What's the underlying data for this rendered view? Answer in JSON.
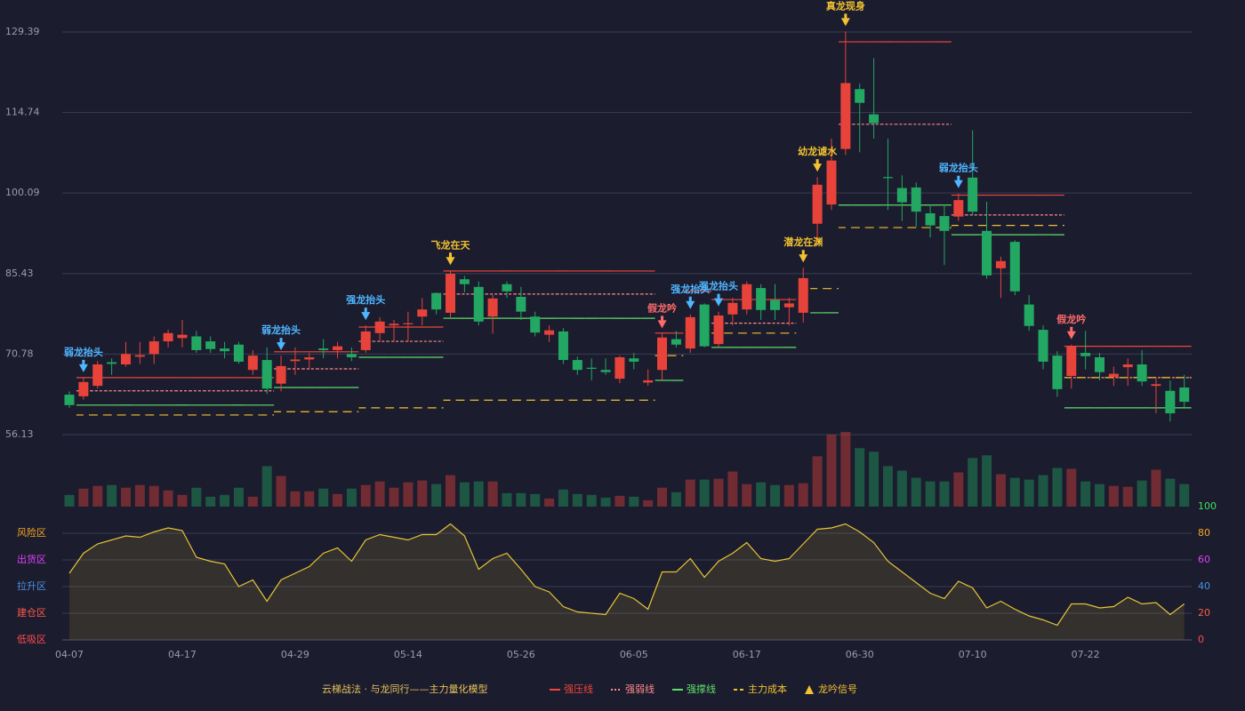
{
  "chart_data": {
    "type": "candlestick",
    "subtitle": "云梯战法 · 与龙同行——主力量化模型",
    "categories": [
      "04-07",
      null,
      null,
      null,
      null,
      null,
      null,
      null,
      "04-17",
      null,
      null,
      null,
      null,
      null,
      null,
      null,
      "04-29",
      null,
      null,
      null,
      null,
      null,
      null,
      null,
      "05-14",
      null,
      null,
      null,
      null,
      null,
      null,
      null,
      "05-26",
      null,
      null,
      null,
      null,
      null,
      null,
      null,
      "06-05",
      null,
      null,
      null,
      null,
      null,
      null,
      null,
      "06-17",
      null,
      null,
      null,
      null,
      null,
      null,
      null,
      "06-30",
      null,
      null,
      null,
      null,
      null,
      null,
      null,
      "07-10",
      null,
      null,
      null,
      null,
      null,
      null,
      null,
      "07-22",
      null,
      null,
      null,
      null,
      null,
      null,
      null
    ],
    "open": [
      63.4,
      63.1,
      65,
      69.3,
      68.9,
      70.3,
      70.8,
      73.1,
      73.7,
      74.0,
      73.1,
      71.8,
      72.5,
      67.9,
      69.7,
      65.4,
      69.5,
      69.8,
      71.8,
      71.5,
      70.8,
      71.5,
      74.6,
      76,
      76.2,
      77.6,
      81.9,
      78.3,
      84.4,
      83.0,
      77.6,
      83.5,
      81.2,
      77.6,
      74.3,
      74.9,
      69.7,
      68.3,
      67.9,
      66.3,
      70,
      65.6,
      67.9,
      73.5,
      71.8,
      79.8,
      72.6,
      78.0,
      78.9,
      82.8,
      80.6,
      79.3,
      78.3,
      94.5,
      98.0,
      108.1,
      119,
      114.4,
      103,
      101,
      101.1,
      96.4,
      95.9,
      95.8,
      102.9,
      93.2,
      86.4,
      91.2,
      79.8,
      75.2,
      70.5,
      66.8,
      71.0,
      70.2,
      66.6,
      68.4,
      68.9,
      65,
      64.1,
      64.7
    ],
    "high": [
      64,
      66.5,
      69.5,
      70,
      73,
      73,
      74,
      75.2,
      77,
      75,
      74,
      73,
      73,
      71.5,
      72,
      70.5,
      72,
      71,
      73.5,
      73,
      72,
      76,
      77.5,
      77,
      78.5,
      81,
      82,
      86,
      85,
      84,
      81.5,
      84,
      83,
      78.5,
      76,
      75.5,
      70.3,
      70,
      70,
      70.5,
      71,
      68,
      74.5,
      75,
      78,
      80,
      78.5,
      81,
      84,
      83.5,
      83.5,
      81,
      86.5,
      103,
      110,
      129.5,
      120,
      124.6,
      110,
      103.3,
      102,
      98,
      98,
      100,
      111.5,
      98.5,
      88.5,
      91.5,
      81.5,
      76,
      71.3,
      72.5,
      75,
      71,
      68.5,
      70,
      71.5,
      66.5,
      66,
      67
    ],
    "low": [
      61,
      62.5,
      64.5,
      67,
      68.5,
      69,
      69,
      72,
      72,
      71,
      71,
      70,
      69,
      67,
      63.5,
      64,
      67,
      68,
      70,
      70,
      69.5,
      71,
      73,
      73,
      73,
      76,
      78,
      77.5,
      82,
      76,
      74.5,
      81,
      77,
      74,
      73,
      69,
      67,
      66,
      67,
      65.5,
      68,
      65,
      66,
      72,
      71,
      72,
      72,
      76,
      78,
      77,
      77,
      76,
      76.5,
      91.5,
      97,
      107,
      107.5,
      110,
      97,
      95,
      94,
      92,
      87,
      95,
      96,
      84.5,
      81,
      81.5,
      75,
      68,
      63,
      64.5,
      68,
      66,
      65,
      65,
      65,
      60,
      58.5,
      61
    ],
    "close": [
      61.5,
      65.7,
      68.9,
      69.0,
      70.8,
      70.6,
      73.1,
      74.6,
      74.3,
      71.5,
      71.7,
      71.3,
      69.4,
      70.5,
      64.5,
      68.6,
      69.8,
      70.2,
      71.5,
      72.2,
      70.2,
      74.9,
      76.7,
      76.3,
      76.4,
      78.9,
      78.9,
      85.4,
      83.5,
      76.7,
      80.9,
      82.2,
      78.5,
      74.7,
      75.1,
      69.7,
      67.9,
      68.1,
      67.5,
      70.2,
      69.4,
      66.0,
      73.8,
      72.5,
      77.5,
      72.2,
      77.8,
      80.1,
      83.5,
      78.8,
      78.8,
      80.0,
      84.6,
      101.6,
      106.0,
      120.1,
      116.5,
      112.8,
      102.8,
      98.4,
      96.7,
      94.2,
      93.2,
      98.8,
      96.7,
      85.1,
      87.7,
      82.2,
      75.9,
      69.4,
      64.4,
      72.2,
      70.4,
      67.5,
      67.2,
      68.9,
      65.8,
      65.3,
      60.0,
      62.1
    ],
    "up_color": "#e8433a",
    "down_color": "#22a862",
    "ylim": [
      56.13,
      129.39
    ],
    "yticks": [
      56.13,
      70.78,
      85.43,
      100.09,
      114.74,
      129.39
    ],
    "volume": [
      13,
      20,
      23,
      24,
      21,
      24,
      23,
      18,
      13,
      21,
      11,
      13,
      21,
      11,
      45,
      34,
      17,
      17,
      20,
      14,
      20,
      24,
      28,
      21,
      27,
      29,
      25,
      35,
      27,
      28,
      28,
      15,
      15,
      14,
      9,
      19,
      14,
      13,
      10,
      12,
      11,
      7,
      21,
      16,
      30,
      30,
      31,
      39,
      25,
      27,
      24,
      24,
      26,
      56,
      80,
      83,
      65,
      61,
      45,
      40,
      32,
      28,
      28,
      38,
      54,
      57,
      36,
      32,
      30,
      35,
      43,
      42,
      28,
      25,
      23,
      22,
      29,
      41,
      31,
      25
    ],
    "series": [
      {
        "name": "强压线",
        "color": "#f0463c",
        "style": "solid",
        "values": [
          null,
          66.5,
          66.5,
          66.5,
          66.5,
          66.5,
          66.5,
          66.5,
          66.5,
          66.5,
          66.5,
          66.5,
          66.5,
          66.5,
          66.5,
          71.2,
          71.2,
          71.2,
          71.2,
          71.2,
          71.2,
          75.7,
          75.7,
          75.7,
          75.7,
          75.7,
          75.7,
          85.9,
          85.9,
          85.9,
          85.9,
          85.9,
          85.9,
          85.9,
          85.9,
          85.9,
          85.9,
          85.9,
          85.9,
          85.9,
          85.9,
          85.9,
          74.6,
          74.6,
          82.2,
          82.2,
          80.7,
          80.7,
          80.7,
          80.7,
          80.7,
          80.7,
          null,
          null,
          null,
          127.6,
          127.6,
          127.6,
          127.6,
          127.6,
          127.6,
          127.6,
          127.6,
          99.7,
          99.7,
          99.7,
          99.7,
          99.7,
          99.7,
          99.7,
          99.7,
          72.2,
          72.2,
          72.2,
          72.2,
          72.2,
          72.2,
          72.2,
          72.2,
          72.2
        ]
      },
      {
        "name": "强弱线",
        "color": "#ff8a8a",
        "style": "dotted",
        "values": [
          null,
          64.1,
          64.1,
          64.1,
          64.1,
          64.1,
          64.1,
          64.1,
          64.1,
          64.1,
          64.1,
          64.1,
          64.1,
          64.1,
          64.1,
          68.1,
          68.1,
          68.1,
          68.1,
          68.1,
          68.1,
          73.1,
          73.1,
          73.1,
          73.1,
          73.1,
          73.1,
          81.7,
          81.7,
          81.7,
          81.7,
          81.7,
          81.7,
          81.7,
          81.7,
          81.7,
          81.7,
          81.7,
          81.7,
          81.7,
          81.7,
          81.7,
          null,
          null,
          null,
          null,
          76.4,
          76.4,
          76.4,
          76.4,
          76.4,
          76.4,
          null,
          null,
          null,
          112.6,
          112.6,
          112.6,
          112.6,
          112.6,
          112.6,
          112.6,
          112.6,
          96.1,
          96.1,
          96.1,
          96.1,
          96.1,
          96.1,
          96.1,
          96.1,
          66.5,
          66.5,
          66.5,
          66.5,
          66.5,
          66.5,
          66.5,
          66.5,
          66.5
        ]
      },
      {
        "name": "强撑线",
        "color": "#5fe06a",
        "style": "solid",
        "values": [
          null,
          61.5,
          61.5,
          61.5,
          61.5,
          61.5,
          61.5,
          61.5,
          61.5,
          61.5,
          61.5,
          61.5,
          61.5,
          61.5,
          61.5,
          64.7,
          64.7,
          64.7,
          64.7,
          64.7,
          64.7,
          70.2,
          70.2,
          70.2,
          70.2,
          70.2,
          70.2,
          77.3,
          77.3,
          77.3,
          77.3,
          77.3,
          77.3,
          77.3,
          77.3,
          77.3,
          77.3,
          77.3,
          77.3,
          77.3,
          77.3,
          77.3,
          66.0,
          66.0,
          null,
          null,
          72.0,
          72.0,
          72.0,
          72.0,
          72.0,
          72.0,
          null,
          78.3,
          78.3,
          97.9,
          97.9,
          97.9,
          97.9,
          97.9,
          97.9,
          97.9,
          97.9,
          92.5,
          92.5,
          92.5,
          92.5,
          92.5,
          92.5,
          92.5,
          92.5,
          61.0,
          61.0,
          61.0,
          61.0,
          61.0,
          61.0,
          61.0,
          61.0,
          61.0
        ]
      },
      {
        "name": "主力成本",
        "color": "#f2c230",
        "style": "dashed",
        "values": [
          null,
          59.7,
          59.7,
          59.7,
          59.7,
          59.7,
          59.7,
          59.7,
          59.7,
          59.7,
          59.7,
          59.7,
          59.7,
          59.7,
          59.7,
          60.3,
          60.3,
          60.3,
          60.3,
          60.3,
          60.3,
          61.0,
          61.0,
          61.0,
          61.0,
          61.0,
          61.0,
          62.4,
          62.4,
          62.4,
          62.4,
          62.4,
          62.4,
          62.4,
          62.4,
          62.4,
          62.4,
          62.4,
          62.4,
          62.4,
          62.4,
          62.4,
          70.5,
          70.5,
          null,
          null,
          74.6,
          74.6,
          74.6,
          74.6,
          74.6,
          74.6,
          null,
          82.7,
          82.7,
          93.8,
          93.8,
          93.8,
          93.8,
          93.8,
          93.8,
          93.8,
          93.8,
          94.2,
          94.2,
          94.2,
          94.2,
          94.2,
          94.2,
          94.2,
          94.2,
          66.5,
          66.5,
          66.5,
          66.5,
          66.5,
          66.5,
          66.5,
          66.5,
          66.5
        ]
      }
    ],
    "signal_name": "龙吟信号",
    "signal_color": "#f2c230",
    "signals": [
      {
        "index": 1,
        "label": "弱龙抬头",
        "color": "#4fb6ff"
      },
      {
        "index": 15,
        "label": "弱龙抬头",
        "color": "#4fb6ff"
      },
      {
        "index": 21,
        "label": "强龙抬头",
        "color": "#4fb6ff"
      },
      {
        "index": 27,
        "label": "飞龙在天",
        "color": "#f2c230"
      },
      {
        "index": 42,
        "label": "假龙吟",
        "color": "#ff6b6b"
      },
      {
        "index": 44,
        "label": "强龙抬头",
        "color": "#4fb6ff"
      },
      {
        "index": 46,
        "label": "强龙抬头",
        "color": "#4fb6ff"
      },
      {
        "index": 52,
        "label": "潜龙在渊",
        "color": "#f2c230"
      },
      {
        "index": 53,
        "label": "幼龙谑水",
        "color": "#f2c230"
      },
      {
        "index": 55,
        "label": "真龙现身",
        "color": "#f2c230"
      },
      {
        "index": 63,
        "label": "弱龙抬头",
        "color": "#4fb6ff"
      },
      {
        "index": 71,
        "label": "假龙吟",
        "color": "#ff6b6b"
      }
    ],
    "oscillator": {
      "color": "#e6c435",
      "values": [
        50,
        65,
        72,
        75,
        78,
        77,
        81,
        84,
        82,
        62,
        59,
        57,
        40,
        45,
        29,
        45,
        50,
        55,
        65,
        69,
        59,
        75,
        79,
        77,
        75,
        79,
        79,
        87,
        78,
        53,
        61,
        65,
        53,
        40,
        36,
        25,
        21,
        20,
        19,
        35,
        31,
        23,
        51,
        51,
        61,
        47,
        59,
        65,
        73,
        61,
        59,
        61,
        72,
        83,
        84,
        87,
        81,
        73,
        59,
        51,
        43,
        35,
        31,
        44,
        39,
        24,
        29,
        23,
        18,
        15,
        11,
        27,
        27,
        24,
        25,
        32,
        27,
        28,
        19,
        27
      ],
      "y2lim": [
        0,
        100
      ],
      "y2ticks": [
        0,
        20,
        40,
        60,
        80,
        100
      ],
      "y2tick_colors": [
        "#ff4d4d",
        "#ff5a4a",
        "#4a90e2",
        "#e040fb",
        "#f5a623",
        "#3fe05a"
      ],
      "zones": [
        {
          "value": 80,
          "label": "风险区",
          "color": "#f5a623"
        },
        {
          "value": 60,
          "label": "出货区",
          "color": "#e040fb"
        },
        {
          "value": 40,
          "label": "拉升区",
          "color": "#4a90e2"
        },
        {
          "value": 20,
          "label": "建仓区",
          "color": "#ff5a4a"
        },
        {
          "value": 0,
          "label": "低吸区",
          "color": "#ff4d4d"
        }
      ]
    },
    "grid": true
  }
}
